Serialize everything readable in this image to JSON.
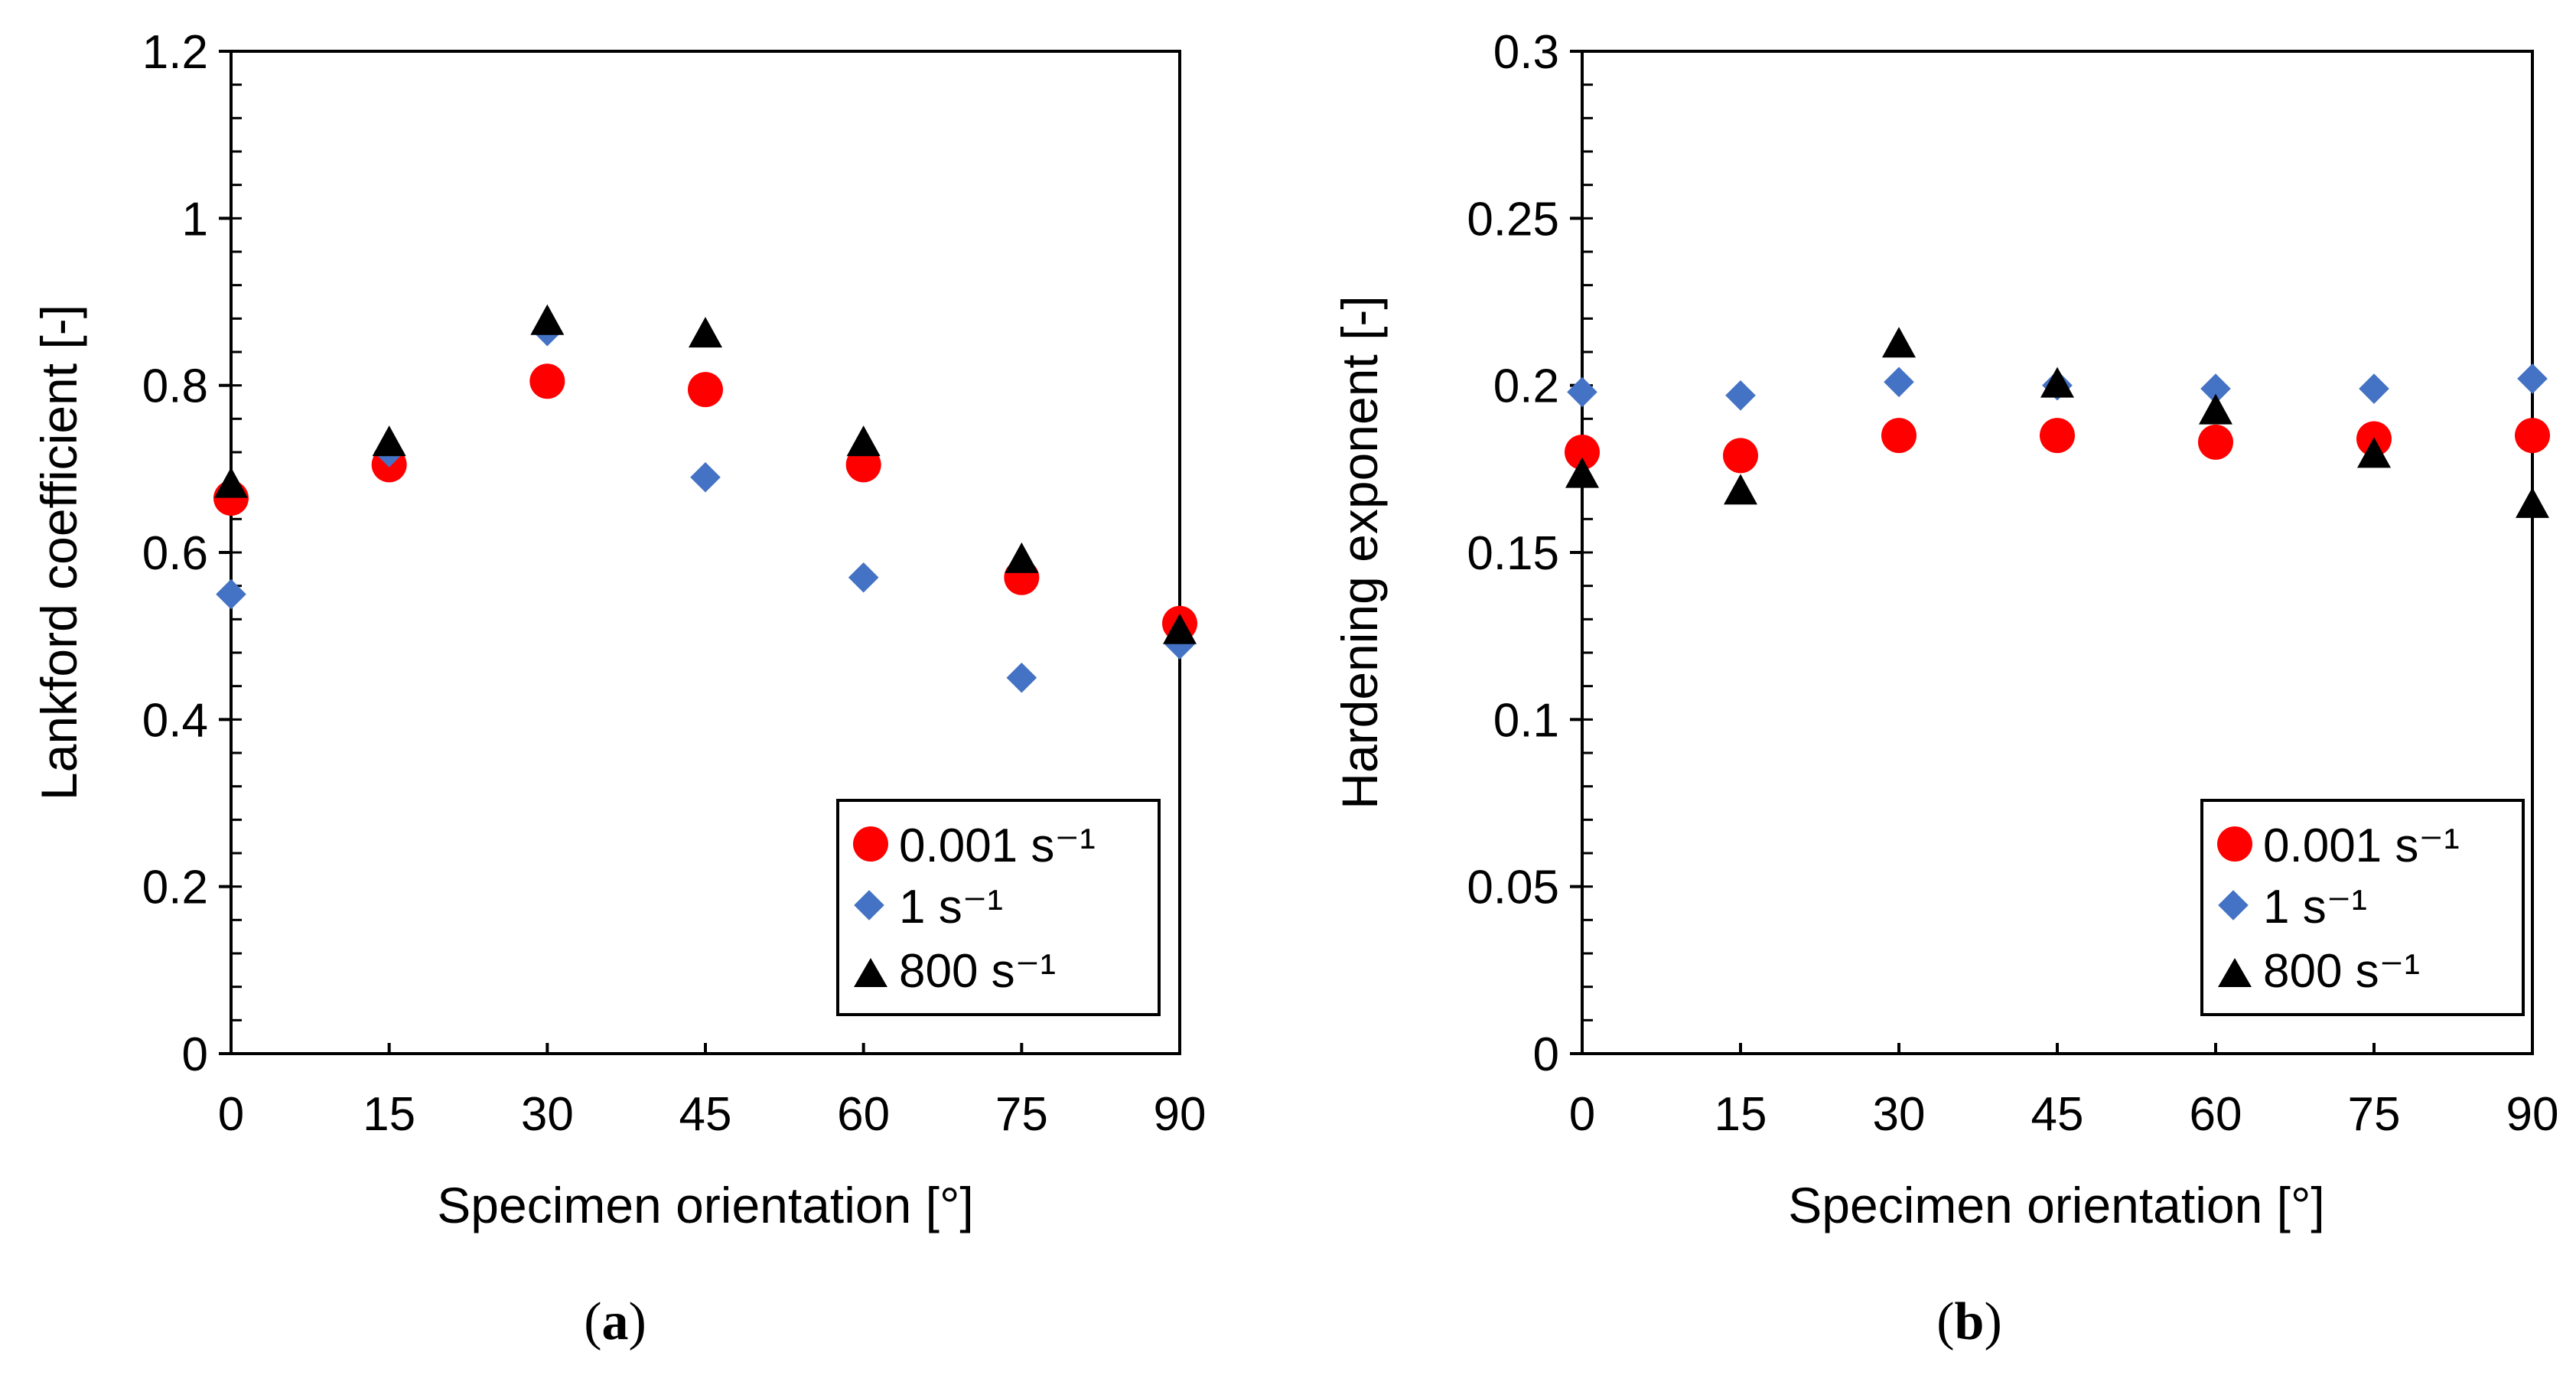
{
  "chart_data": [
    {
      "type": "scatter",
      "panel_label": "a",
      "title": "",
      "xlabel": "Specimen orientation [°]",
      "ylabel": "Lankford coefficient [-]",
      "x": [
        0,
        15,
        30,
        45,
        60,
        75,
        90
      ],
      "x_ticks": [
        "0",
        "15",
        "30",
        "45",
        "60",
        "75",
        "90"
      ],
      "y_ticks": [
        "0",
        "0.2",
        "0.4",
        "0.6",
        "0.8",
        "1",
        "1.2"
      ],
      "xlim": [
        0,
        90
      ],
      "ylim": [
        0,
        1.2
      ],
      "y_minor_step": 0.04,
      "grid": false,
      "legend_position": "bottom-right",
      "series": [
        {
          "name": "0.001 s⁻¹",
          "marker": "circle",
          "color": "#ff0000",
          "values": [
            0.665,
            0.705,
            0.805,
            0.795,
            0.705,
            0.57,
            0.515
          ]
        },
        {
          "name": "1 s⁻¹",
          "marker": "diamond",
          "color": "#4472c4",
          "values": [
            0.55,
            0.72,
            0.865,
            0.69,
            0.57,
            0.45,
            0.49
          ]
        },
        {
          "name": "800 s⁻¹",
          "marker": "triangle",
          "color": "#000000",
          "values": [
            0.68,
            0.73,
            0.875,
            0.86,
            0.73,
            0.59,
            0.505
          ]
        }
      ]
    },
    {
      "type": "scatter",
      "panel_label": "b",
      "title": "",
      "xlabel": "Specimen orientation [°]",
      "ylabel": "Hardening exponent [-]",
      "x": [
        0,
        15,
        30,
        45,
        60,
        75,
        90
      ],
      "x_ticks": [
        "0",
        "15",
        "30",
        "45",
        "60",
        "75",
        "90"
      ],
      "y_ticks": [
        "0",
        "0.05",
        "0.1",
        "0.15",
        "0.2",
        "0.25",
        "0.3"
      ],
      "xlim": [
        0,
        90
      ],
      "ylim": [
        0,
        0.3
      ],
      "y_minor_step": 0.01,
      "grid": false,
      "legend_position": "bottom-right",
      "series": [
        {
          "name": "0.001 s⁻¹",
          "marker": "circle",
          "color": "#ff0000",
          "values": [
            0.18,
            0.179,
            0.185,
            0.185,
            0.183,
            0.184,
            0.185
          ]
        },
        {
          "name": "1 s⁻¹",
          "marker": "diamond",
          "color": "#4472c4",
          "values": [
            0.198,
            0.197,
            0.201,
            0.2,
            0.199,
            0.199,
            0.202
          ]
        },
        {
          "name": "800 s⁻¹",
          "marker": "triangle",
          "color": "#000000",
          "values": [
            0.173,
            0.168,
            0.212,
            0.2,
            0.192,
            0.179,
            0.164
          ]
        }
      ]
    }
  ]
}
